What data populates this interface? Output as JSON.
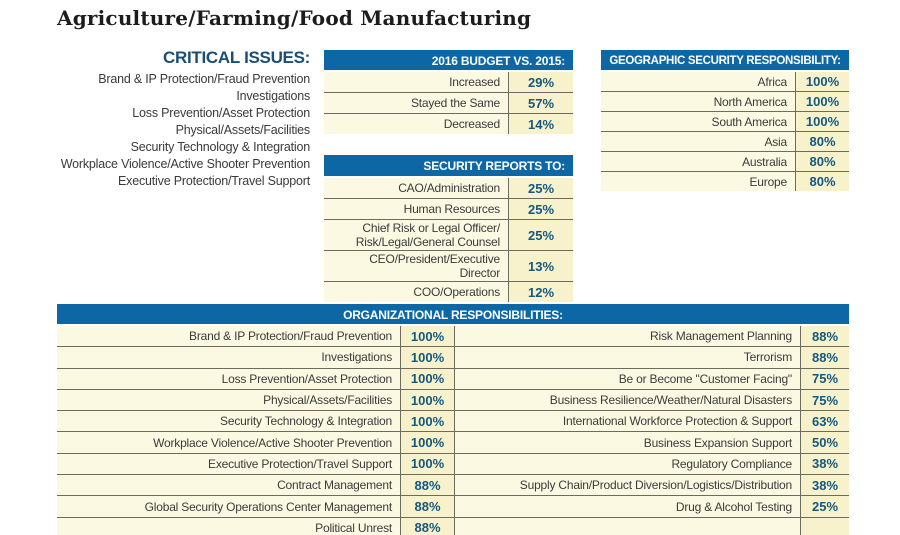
{
  "page_title": "Agriculture/Farming/Food Manufacturing",
  "critical_issues": {
    "title": "CRITICAL ISSUES:",
    "items": [
      "Brand & IP Protection/Fraud Prevention",
      "Investigations",
      "Loss Prevention/Asset Protection",
      "Physical/Assets/Facilities",
      "Security Technology & Integration",
      "Workplace Violence/Active Shooter Prevention",
      "Executive Protection/Travel Support"
    ]
  },
  "chart_data": [
    {
      "type": "table",
      "title": "2016 BUDGET VS. 2015:",
      "rows": [
        {
          "label": "Increased",
          "value": "29%"
        },
        {
          "label": "Stayed the Same",
          "value": "57%"
        },
        {
          "label": "Decreased",
          "value": "14%"
        }
      ]
    },
    {
      "type": "table",
      "title": "SECURITY REPORTS TO:",
      "rows": [
        {
          "label": "CAO/Administration",
          "value": "25%"
        },
        {
          "label": "Human Resources",
          "value": "25%"
        },
        {
          "label": "Chief Risk or Legal Officer/\nRisk/Legal/General Counsel",
          "value": "25%"
        },
        {
          "label": "CEO/President/Executive Director",
          "value": "13%"
        },
        {
          "label": "COO/Operations",
          "value": "12%"
        }
      ]
    },
    {
      "type": "table",
      "title": "GEOGRAPHIC SECURITY RESPONSIBILITY:",
      "rows": [
        {
          "label": "Africa",
          "value": "100%"
        },
        {
          "label": "North America",
          "value": "100%"
        },
        {
          "label": "South America",
          "value": "100%"
        },
        {
          "label": "Asia",
          "value": "80%"
        },
        {
          "label": "Australia",
          "value": "80%"
        },
        {
          "label": "Europe",
          "value": "80%"
        }
      ]
    },
    {
      "type": "table",
      "title": "ORGANIZATIONAL RESPONSIBILITIES:",
      "left_rows": [
        {
          "label": "Brand & IP Protection/Fraud Prevention",
          "value": "100%"
        },
        {
          "label": "Investigations",
          "value": "100%"
        },
        {
          "label": "Loss Prevention/Asset Protection",
          "value": "100%"
        },
        {
          "label": "Physical/Assets/Facilities",
          "value": "100%"
        },
        {
          "label": "Security Technology & Integration",
          "value": "100%"
        },
        {
          "label": "Workplace Violence/Active Shooter Prevention",
          "value": "100%"
        },
        {
          "label": "Executive Protection/Travel Support",
          "value": "100%"
        },
        {
          "label": "Contract Management",
          "value": "88%"
        },
        {
          "label": "Global Security Operations Center Management",
          "value": "88%"
        },
        {
          "label": "Political Unrest",
          "value": "88%"
        }
      ],
      "right_rows": [
        {
          "label": "Risk Management Planning",
          "value": "88%"
        },
        {
          "label": "Terrorism",
          "value": "88%"
        },
        {
          "label": "Be or Become \"Customer Facing\"",
          "value": "75%"
        },
        {
          "label": "Business Resilience/Weather/Natural Disasters",
          "value": "75%"
        },
        {
          "label": "International Workforce Protection & Support",
          "value": "63%"
        },
        {
          "label": "Business Expansion Support",
          "value": "50%"
        },
        {
          "label": "Regulatory Compliance",
          "value": "38%"
        },
        {
          "label": "Supply Chain/Product Diversion/Logistics/Distribution",
          "value": "38%"
        },
        {
          "label": "Drug & Alcohol Testing",
          "value": "25%"
        },
        {
          "label": "",
          "value": ""
        }
      ]
    }
  ],
  "colors": {
    "header_blue": "#0e67a5",
    "label_cream": "#fcf9e3",
    "value_cream": "#f8f2cc",
    "value_text": "#15587e",
    "divider": "#6b6b60",
    "heading_navy": "#1b4e74"
  }
}
